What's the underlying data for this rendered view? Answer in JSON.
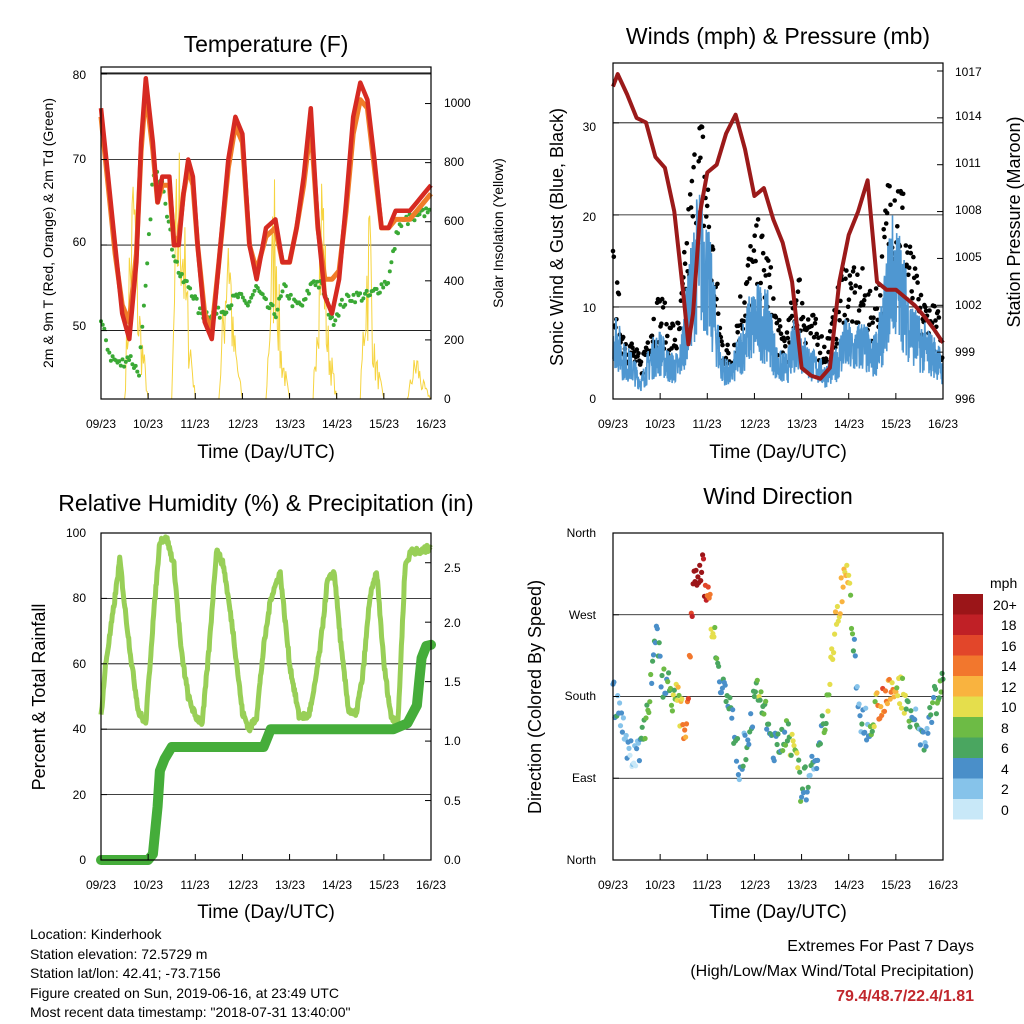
{
  "time_ticks": [
    "09/23",
    "10/23",
    "11/23",
    "12/23",
    "13/23",
    "14/23",
    "15/23",
    "16/23"
  ],
  "x_axis_label": "Time (Day/UTC)",
  "colors": {
    "temp_2m": "#d62a22",
    "temp_9m": "#f07c28",
    "dewpoint": "#3aa935",
    "solar": "#f6d440",
    "wind": "#4f97d1",
    "gust": "#000000",
    "pressure": "#9b1a1a",
    "rh": "#98cf57",
    "precip": "#45ad3a"
  },
  "charts": {
    "temperature": {
      "title": "Temperature (F)",
      "ylabel_left": "2m & 9m T (Red, Orange) & 2m Td (Green)",
      "ylabel_right": "Solar Insolation (Yellow)",
      "left_ticks": [
        "50",
        "60",
        "70",
        "80"
      ],
      "right_ticks": [
        "0",
        "200",
        "400",
        "600",
        "800",
        "1000"
      ]
    },
    "winds": {
      "title": "Winds (mph) & Pressure (mb)",
      "ylabel_left": "Sonic Wind & Gust (Blue, Black)",
      "ylabel_right": "Station Pressure (Maroon)",
      "left_ticks": [
        "0",
        "10",
        "20",
        "30"
      ],
      "right_ticks": [
        "996",
        "999",
        "1002",
        "1005",
        "1008",
        "1011",
        "1014",
        "1017"
      ]
    },
    "humidity": {
      "title": "Relative Humidity (%) & Precipitation (in)",
      "ylabel_left": "Percent & Total Rainfall",
      "left_ticks": [
        "0",
        "20",
        "40",
        "60",
        "80",
        "100"
      ],
      "right_ticks": [
        "0.0",
        "0.5",
        "1.0",
        "1.5",
        "2.0",
        "2.5"
      ]
    },
    "direction": {
      "title": "Wind Direction",
      "ylabel_left": "Direction (Colored By Speed)",
      "left_ticks": [
        "North",
        "East",
        "South",
        "West",
        "North"
      ],
      "legend_title": "mph",
      "legend_labels": [
        "0",
        "2",
        "4",
        "6",
        "8",
        "10",
        "12",
        "14",
        "16",
        "18",
        "20+"
      ],
      "legend_colors": [
        "#c8e8f8",
        "#86c3ea",
        "#4a8fc9",
        "#4aa660",
        "#6dbb45",
        "#e5de4c",
        "#f9b33f",
        "#f2772d",
        "#e2462a",
        "#c02026",
        "#9b1518"
      ]
    }
  },
  "chart_data": [
    {
      "type": "line",
      "title": "Temperature (F)",
      "x": [
        "09/23",
        "10/23",
        "11/23",
        "12/23",
        "13/23",
        "14/23",
        "15/23",
        "16/23"
      ],
      "ylim": [
        42,
        80
      ],
      "y2lim": [
        0,
        1100
      ],
      "series": [
        {
          "name": "2m T",
          "x": [
            9.0,
            9.15,
            9.3,
            9.45,
            9.6,
            9.75,
            9.85,
            9.95,
            10.1,
            10.2,
            10.3,
            10.45,
            10.55,
            10.65,
            10.75,
            10.85,
            10.95,
            11.05,
            11.2,
            11.35,
            11.5,
            11.7,
            11.85,
            12.0,
            12.15,
            12.3,
            12.5,
            12.7,
            12.85,
            13.0,
            13.15,
            13.3,
            13.45,
            13.6,
            13.75,
            13.9,
            14.05,
            14.2,
            14.35,
            14.5,
            14.65,
            14.8,
            14.95,
            15.1,
            15.25,
            15.4,
            15.55,
            15.7,
            15.85,
            16.0
          ],
          "y": [
            76,
            68,
            60,
            52,
            49,
            58,
            72,
            79.5,
            72,
            65,
            68,
            68,
            60,
            60,
            66,
            70,
            68,
            60,
            51,
            49,
            58,
            70,
            75,
            73,
            60,
            56,
            62,
            63,
            58,
            58,
            62,
            68,
            76,
            62,
            54,
            52,
            56,
            65,
            75,
            79,
            77,
            70,
            62,
            62,
            64,
            64,
            64,
            65,
            66,
            67
          ]
        },
        {
          "name": "9m T",
          "x": [
            9.0,
            9.15,
            9.3,
            9.45,
            9.6,
            9.75,
            9.85,
            9.95,
            10.1,
            10.2,
            10.3,
            10.45,
            10.55,
            10.65,
            10.75,
            10.85,
            10.95,
            11.05,
            11.2,
            11.35,
            11.5,
            11.7,
            11.85,
            12.0,
            12.15,
            12.3,
            12.5,
            12.7,
            12.85,
            13.0,
            13.15,
            13.3,
            13.45,
            13.6,
            13.75,
            13.9,
            14.05,
            14.2,
            14.35,
            14.5,
            14.65,
            14.8,
            14.95,
            15.1,
            15.25,
            15.4,
            15.55,
            15.7,
            15.85,
            16.0
          ],
          "y": [
            75,
            67,
            59,
            53,
            51,
            59,
            71,
            78,
            71,
            65,
            67,
            67,
            60,
            61,
            66,
            69,
            67,
            60,
            52,
            50,
            58,
            69,
            74,
            72,
            60,
            57,
            61,
            62,
            58,
            58,
            62,
            67,
            74,
            62,
            56,
            56,
            57,
            64,
            73,
            77,
            76,
            69,
            62,
            62,
            63,
            63,
            63,
            64,
            65,
            66
          ]
        },
        {
          "name": "2m Td",
          "x": [
            9.0,
            9.2,
            9.4,
            9.6,
            9.8,
            9.95,
            10.1,
            10.3,
            10.5,
            10.7,
            10.9,
            11.1,
            11.3,
            11.5,
            11.7,
            11.9,
            12.1,
            12.3,
            12.5,
            12.7,
            12.9,
            13.1,
            13.3,
            13.5,
            13.7,
            13.9,
            14.1,
            14.3,
            14.5,
            14.7,
            14.9,
            15.1,
            15.3,
            15.5,
            15.7,
            15.9,
            16.0
          ],
          "y": [
            51,
            47,
            46,
            47,
            45,
            55,
            68,
            68,
            60,
            56,
            55,
            52,
            52,
            52,
            53,
            54,
            53,
            55,
            53,
            52,
            55,
            53,
            53,
            56,
            55,
            51,
            53,
            54,
            54,
            54,
            55,
            56,
            62,
            63,
            63,
            64,
            65
          ]
        },
        {
          "name": "Solar",
          "axis": "right",
          "x": [
            9.0,
            9.5,
            9.6,
            9.7,
            9.8,
            10.0,
            10.5,
            10.6,
            10.7,
            10.8,
            11.0,
            11.5,
            11.6,
            11.7,
            11.8,
            12.0,
            12.5,
            12.6,
            12.7,
            12.8,
            13.0,
            13.5,
            13.6,
            13.7,
            13.8,
            14.0,
            14.5,
            14.6,
            14.7,
            14.8,
            15.0,
            15.5,
            15.6,
            15.7,
            15.8,
            16.0
          ],
          "y": [
            0,
            0,
            600,
            950,
            400,
            0,
            0,
            800,
            1050,
            500,
            0,
            0,
            400,
            900,
            300,
            0,
            0,
            500,
            950,
            250,
            0,
            0,
            600,
            980,
            300,
            0,
            0,
            500,
            800,
            200,
            0,
            0,
            120,
            180,
            80,
            0
          ]
        }
      ]
    },
    {
      "type": "line",
      "title": "Winds (mph) & Pressure (mb)",
      "x": [
        "09/23",
        "10/23",
        "11/23",
        "12/23",
        "13/23",
        "14/23",
        "15/23",
        "16/23"
      ],
      "ylim": [
        0,
        36
      ],
      "y2lim": [
        996,
        1017
      ],
      "series": [
        {
          "name": "Sonic Wind",
          "x": [
            9.0,
            9.2,
            9.4,
            9.6,
            9.8,
            10.0,
            10.2,
            10.4,
            10.6,
            10.8,
            10.95,
            11.1,
            11.3,
            11.5,
            11.7,
            11.9,
            12.1,
            12.3,
            12.5,
            12.7,
            12.9,
            13.1,
            13.3,
            13.5,
            13.7,
            13.9,
            14.1,
            14.3,
            14.5,
            14.7,
            14.9,
            15.1,
            15.3,
            15.5,
            15.7,
            15.9,
            16.0
          ],
          "y": [
            9,
            5,
            4,
            2,
            5,
            6,
            4,
            4,
            11,
            18,
            17,
            12,
            4,
            3,
            6,
            9,
            10,
            9,
            4,
            4,
            8,
            5,
            4,
            3,
            4,
            7,
            6,
            7,
            5,
            8,
            16,
            14,
            9,
            7,
            6,
            5,
            3
          ]
        },
        {
          "name": "Gust",
          "x": [
            9.0,
            9.2,
            9.4,
            9.6,
            9.8,
            10.0,
            10.2,
            10.4,
            10.6,
            10.8,
            10.95,
            11.1,
            11.3,
            11.5,
            11.7,
            11.9,
            12.1,
            12.3,
            12.5,
            12.7,
            12.9,
            13.1,
            13.3,
            13.5,
            13.7,
            13.9,
            14.1,
            14.3,
            14.5,
            14.7,
            14.9,
            15.1,
            15.3,
            15.5,
            15.7,
            15.9,
            16.0
          ],
          "y": [
            15,
            8,
            6,
            4,
            9,
            11,
            8,
            8,
            20,
            30,
            28,
            18,
            7,
            5,
            11,
            16,
            18,
            15,
            8,
            7,
            14,
            10,
            8,
            6,
            9,
            15,
            13,
            13,
            10,
            15,
            27,
            24,
            16,
            11,
            10,
            9,
            4
          ]
        },
        {
          "name": "Pressure",
          "axis": "right",
          "x": [
            9.0,
            9.1,
            9.3,
            9.5,
            9.7,
            9.9,
            10.1,
            10.3,
            10.5,
            10.6,
            10.7,
            10.85,
            11.0,
            11.2,
            11.4,
            11.6,
            11.8,
            12.0,
            12.2,
            12.4,
            12.6,
            12.8,
            13.0,
            13.2,
            13.4,
            13.6,
            13.8,
            14.0,
            14.2,
            14.4,
            14.6,
            14.8,
            15.0,
            15.2,
            15.4,
            15.6,
            15.8,
            16.0
          ],
          "y": [
            1016.0,
            1016.8,
            1015.5,
            1014.0,
            1013.7,
            1011.5,
            1010.8,
            1008.0,
            1002.5,
            999.5,
            1001.5,
            1008.0,
            1010.5,
            1011.0,
            1013.0,
            1014.2,
            1012.0,
            1009.0,
            1009.5,
            1007.5,
            1006.0,
            1003.5,
            998.0,
            997.5,
            997.3,
            998.0,
            1003.5,
            1006.5,
            1008.0,
            1010.0,
            1003.5,
            1003.0,
            1003.0,
            1002.5,
            1002.0,
            1001.3,
            1000.5,
            999.6
          ]
        }
      ]
    },
    {
      "type": "line",
      "title": "Relative Humidity (%) & Precipitation (in)",
      "x": [
        "09/23",
        "10/23",
        "11/23",
        "12/23",
        "13/23",
        "14/23",
        "15/23",
        "16/23"
      ],
      "ylim": [
        0,
        100
      ],
      "y2lim": [
        0,
        2.75
      ],
      "series": [
        {
          "name": "Relative Humidity",
          "x": [
            9.0,
            9.1,
            9.25,
            9.4,
            9.5,
            9.65,
            9.8,
            9.95,
            10.1,
            10.25,
            10.4,
            10.55,
            10.7,
            10.85,
            11.0,
            11.15,
            11.3,
            11.45,
            11.6,
            11.8,
            12.0,
            12.15,
            12.3,
            12.45,
            12.6,
            12.8,
            13.0,
            13.2,
            13.4,
            13.5,
            13.65,
            13.8,
            13.95,
            14.1,
            14.25,
            14.4,
            14.55,
            14.7,
            14.85,
            15.0,
            15.15,
            15.3,
            15.45,
            15.6,
            15.75,
            15.9,
            16.0
          ],
          "y": [
            44,
            60,
            75,
            92,
            78,
            60,
            45,
            42,
            72,
            98,
            98,
            90,
            64,
            50,
            44,
            42,
            66,
            95,
            90,
            70,
            45,
            40,
            44,
            65,
            80,
            88,
            60,
            44,
            44,
            50,
            65,
            85,
            88,
            64,
            46,
            44,
            56,
            80,
            88,
            60,
            44,
            42,
            90,
            95,
            94,
            95,
            96
          ]
        },
        {
          "name": "Total Precipitation",
          "axis": "right",
          "x": [
            9.0,
            9.5,
            10.0,
            10.1,
            10.2,
            10.25,
            10.35,
            10.5,
            10.7,
            11.0,
            11.5,
            12.0,
            12.45,
            12.5,
            12.55,
            12.6,
            13.0,
            13.5,
            14.0,
            14.5,
            15.0,
            15.2,
            15.5,
            15.7,
            15.75,
            15.8,
            15.9,
            16.0
          ],
          "y": [
            0,
            0,
            0,
            0.05,
            0.45,
            0.75,
            0.85,
            0.95,
            0.95,
            0.95,
            0.95,
            0.95,
            0.95,
            1.0,
            1.05,
            1.1,
            1.1,
            1.1,
            1.1,
            1.1,
            1.1,
            1.1,
            1.15,
            1.3,
            1.5,
            1.7,
            1.8,
            1.81
          ]
        }
      ]
    },
    {
      "type": "scatter",
      "title": "Wind Direction",
      "x": [
        "09/23",
        "10/23",
        "11/23",
        "12/23",
        "13/23",
        "14/23",
        "15/23",
        "16/23"
      ],
      "yticks": [
        "North",
        "East",
        "South",
        "West",
        "North"
      ],
      "ylim": [
        0,
        360
      ],
      "series": [
        {
          "name": "Wind Direction",
          "x": [
            9.0,
            9.2,
            9.4,
            9.6,
            9.75,
            9.9,
            10.05,
            10.2,
            10.4,
            10.55,
            10.7,
            10.85,
            11.0,
            11.25,
            11.5,
            11.7,
            11.9,
            12.1,
            12.3,
            12.5,
            12.7,
            12.85,
            13.0,
            13.2,
            13.4,
            13.55,
            13.7,
            13.85,
            14.0,
            14.2,
            14.4,
            14.6,
            14.75,
            14.9,
            15.05,
            15.2,
            15.4,
            15.6,
            15.8,
            16.0
          ],
          "y": [
            180,
            150,
            110,
            130,
            170,
            250,
            200,
            190,
            170,
            140,
            310,
            325,
            300,
            210,
            160,
            100,
            150,
            190,
            140,
            120,
            150,
            110,
            80,
            90,
            140,
            170,
            250,
            300,
            320,
            160,
            150,
            170,
            180,
            180,
            190,
            180,
            150,
            130,
            170,
            190
          ],
          "speed": [
            5,
            4,
            2,
            4,
            8,
            4,
            5,
            6,
            10,
            14,
            18,
            20,
            16,
            4,
            6,
            3,
            5,
            8,
            6,
            4,
            7,
            10,
            6,
            4,
            5,
            8,
            10,
            12,
            10,
            3,
            4,
            12,
            14,
            12,
            10,
            8,
            5,
            4,
            6,
            8
          ]
        }
      ]
    }
  ],
  "info": {
    "location": "Location: Kinderhook",
    "elevation": "Station elevation: 72.5729 m",
    "latlon": "Station lat/lon: 42.41; -73.7156",
    "created": "Figure created on Sun, 2019-06-16, at 23:49 UTC",
    "recent": "Most recent data timestamp: \"2018-07-31 13:40:00\""
  },
  "extremes": {
    "title": "Extremes For Past 7 Days",
    "subtitle": "(High/Low/Max Wind/Total Precipitation)",
    "values": "79.4/48.7/22.4/1.81"
  }
}
